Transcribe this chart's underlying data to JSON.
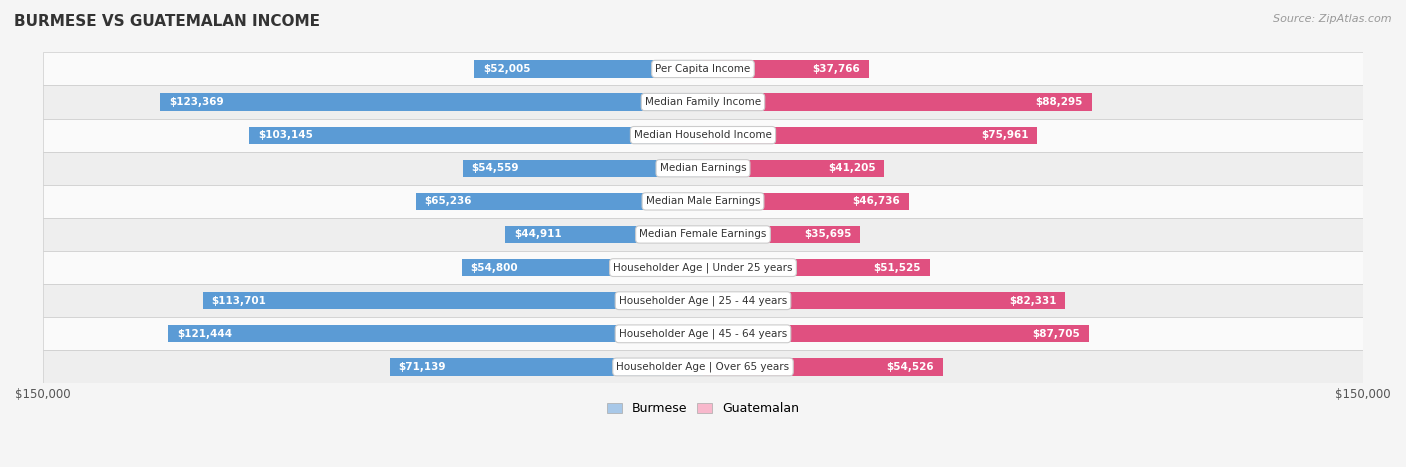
{
  "title": "BURMESE VS GUATEMALAN INCOME",
  "source": "Source: ZipAtlas.com",
  "categories": [
    "Per Capita Income",
    "Median Family Income",
    "Median Household Income",
    "Median Earnings",
    "Median Male Earnings",
    "Median Female Earnings",
    "Householder Age | Under 25 years",
    "Householder Age | 25 - 44 years",
    "Householder Age | 45 - 64 years",
    "Householder Age | Over 65 years"
  ],
  "burmese_values": [
    52005,
    123369,
    103145,
    54559,
    65236,
    44911,
    54800,
    113701,
    121444,
    71139
  ],
  "guatemalan_values": [
    37766,
    88295,
    75961,
    41205,
    46736,
    35695,
    51525,
    82331,
    87705,
    54526
  ],
  "burmese_labels": [
    "$52,005",
    "$123,369",
    "$103,145",
    "$54,559",
    "$65,236",
    "$44,911",
    "$54,800",
    "$113,701",
    "$121,444",
    "$71,139"
  ],
  "guatemalan_labels": [
    "$37,766",
    "$88,295",
    "$75,961",
    "$41,205",
    "$46,736",
    "$35,695",
    "$51,525",
    "$82,331",
    "$87,705",
    "$54,526"
  ],
  "max_value": 150000,
  "burmese_color_light": "#a8c8e8",
  "burmese_color_dark": "#5b9bd5",
  "guatemalan_color_light": "#f8b8cc",
  "guatemalan_color_dark": "#e05080",
  "bar_height": 0.52,
  "background_color": "#f5f5f5",
  "row_bg_light": "#fafafa",
  "row_bg_alt": "#eeeeee",
  "title_color": "#333333",
  "source_color": "#999999",
  "label_inside_color": "#ffffff",
  "label_outside_color": "#555555",
  "legend_burmese": "Burmese",
  "legend_guatemalan": "Guatemalan"
}
